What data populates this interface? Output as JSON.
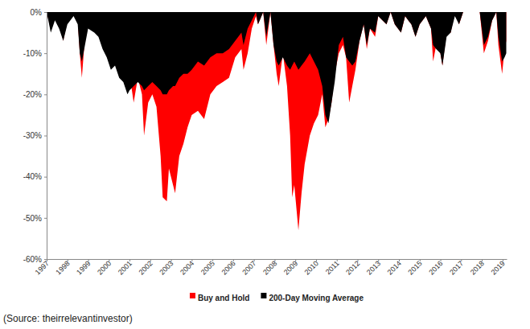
{
  "chart_data": {
    "type": "area",
    "source": "(Source: theirrelevantinvestor)",
    "x": [
      1997.0,
      1997.2,
      1997.4,
      1997.6,
      1997.8,
      1998.0,
      1998.3,
      1998.5,
      1998.6,
      1998.7,
      1998.85,
      1999.0,
      1999.3,
      1999.5,
      1999.7,
      1999.9,
      2000.1,
      2000.3,
      2000.5,
      2000.7,
      2000.9,
      2001.0,
      2001.2,
      2001.4,
      2001.6,
      2001.7,
      2001.9,
      2002.1,
      2002.3,
      2002.5,
      2002.6,
      2002.8,
      2002.9,
      2003.1,
      2003.2,
      2003.4,
      2003.6,
      2003.8,
      2004.0,
      2004.3,
      2004.6,
      2004.9,
      2005.2,
      2005.5,
      2005.8,
      2006.1,
      2006.4,
      2006.5,
      2006.7,
      2006.9,
      2007.1,
      2007.2,
      2007.45,
      2007.6,
      2007.8,
      2007.95,
      2008.1,
      2008.2,
      2008.4,
      2008.6,
      2008.75,
      2008.85,
      2008.95,
      2009.15,
      2009.3,
      2009.45,
      2009.7,
      2009.9,
      2010.1,
      2010.3,
      2010.45,
      2010.6,
      2010.75,
      2010.9,
      2011.1,
      2011.3,
      2011.45,
      2011.6,
      2011.75,
      2011.9,
      2012.1,
      2012.3,
      2012.45,
      2012.6,
      2012.85,
      2013.0,
      2013.4,
      2013.6,
      2013.8,
      2014.1,
      2014.3,
      2014.6,
      2014.8,
      2015.0,
      2015.3,
      2015.55,
      2015.65,
      2015.8,
      2016.0,
      2016.1,
      2016.3,
      2016.5,
      2016.7,
      2016.9,
      2017.1,
      2017.5,
      2017.9,
      2018.1,
      2018.3,
      2018.5,
      2018.7,
      2018.8,
      2018.98,
      2019.1,
      2019.18
    ],
    "series": [
      {
        "name": "Buy and Hold",
        "color": "#ff0000",
        "values": [
          0,
          -4,
          -1,
          -2,
          -7,
          -2,
          0,
          -2,
          -10,
          -16,
          -6,
          -1,
          -2,
          -1,
          -6,
          -1,
          -5,
          -3,
          -4,
          -2,
          -10,
          -15,
          -22,
          -16,
          -20,
          -30,
          -22,
          -20,
          -23,
          -35,
          -45,
          -46,
          -38,
          -42,
          -44,
          -35,
          -32,
          -28,
          -25,
          -24,
          -26,
          -20,
          -18,
          -17,
          -16,
          -11,
          -9,
          -14,
          -10,
          -4,
          -1,
          -3,
          0,
          -8,
          0,
          -8,
          -15,
          -18,
          -10,
          -18,
          -30,
          -45,
          -42,
          -53,
          -44,
          -37,
          -30,
          -27,
          -25,
          -20,
          -28,
          -26,
          -22,
          -15,
          -10,
          -8,
          -11,
          -22,
          -18,
          -14,
          -7,
          -3,
          -9,
          -4,
          -6,
          -1,
          -3,
          0,
          -3,
          -5,
          -1,
          -3,
          -6,
          -3,
          -1,
          -4,
          -12,
          -8,
          -10,
          -13,
          -5,
          -5,
          0,
          -3,
          0,
          0,
          0,
          -10,
          -7,
          -2,
          0,
          -8,
          -15,
          -9,
          -7
        ]
      },
      {
        "name": "200-Day Moving Average",
        "color": "#000000",
        "values": [
          0,
          -5,
          -2,
          -4,
          -7,
          -3,
          -1,
          -3,
          -10,
          -12,
          -8,
          -4,
          -5,
          -6,
          -9,
          -11,
          -14,
          -13,
          -16,
          -17,
          -20,
          -19,
          -18,
          -17,
          -18,
          -19,
          -18,
          -17,
          -18,
          -19,
          -20,
          -20,
          -19,
          -18,
          -18,
          -16,
          -15,
          -15,
          -14,
          -12,
          -13,
          -11,
          -10,
          -10,
          -9,
          -7,
          -5,
          -8,
          -4,
          -2,
          0,
          -3,
          0,
          -6,
          0,
          -8,
          -12,
          -13,
          -11,
          -13,
          -14,
          -13,
          -12,
          -14,
          -13,
          -12,
          -10,
          -12,
          -14,
          -18,
          -25,
          -27,
          -22,
          -17,
          -8,
          -6,
          -11,
          -12,
          -13,
          -12,
          -7,
          -3,
          -8,
          -4,
          -5,
          -1,
          -3,
          0,
          -3,
          -5,
          -1,
          -3,
          -6,
          -3,
          -1,
          -4,
          -8,
          -9,
          -10,
          -13,
          -6,
          -5,
          -1,
          -3,
          0,
          0,
          0,
          -8,
          -6,
          -2,
          0,
          -6,
          -12,
          -11,
          -10
        ]
      }
    ],
    "xlim": [
      1997,
      2019.2
    ],
    "xticks": [
      1997,
      1998,
      1999,
      2000,
      2001,
      2002,
      2003,
      2004,
      2005,
      2006,
      2007,
      2008,
      2009,
      2010,
      2011,
      2012,
      2013,
      2014,
      2015,
      2016,
      2017,
      2018,
      2019
    ],
    "ylim": [
      -60,
      0
    ],
    "yticks": [
      {
        "value": 0,
        "label": "0%"
      },
      {
        "value": -10,
        "label": "-10%"
      },
      {
        "value": -20,
        "label": "-20%"
      },
      {
        "value": -30,
        "label": "-30%"
      },
      {
        "value": -40,
        "label": "-40%"
      },
      {
        "value": -50,
        "label": "-50%"
      },
      {
        "value": -60,
        "label": "-60%"
      }
    ],
    "grid": false,
    "legend": "bottom"
  }
}
